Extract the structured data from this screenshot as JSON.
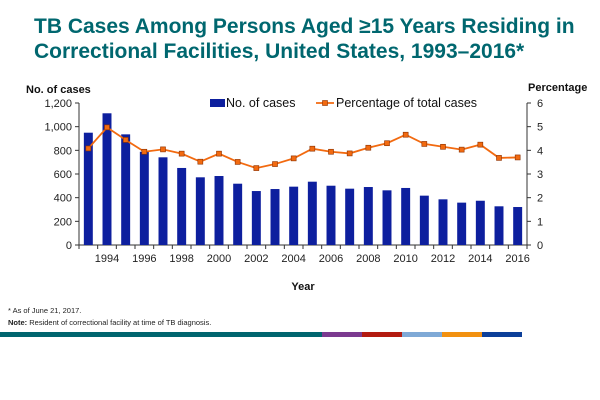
{
  "title": "TB Cases Among Persons Aged ≥15 Years Residing in Correctional Facilities, United States, 1993–2016*",
  "footnote": "*   As of June 21, 2017.",
  "note_label": "Note:",
  "note_text": " Resident of correctional facility at time of TB diagnosis.",
  "colors": {
    "title": "#00676f",
    "bar": "#0d1f9e",
    "line": "#f26a10",
    "footer": [
      "#00656f",
      "#7b3a8f",
      "#b31b10",
      "#7fa9d6",
      "#f29110",
      "#0c3f99"
    ]
  },
  "chart_data": {
    "type": "bar+line",
    "xlabel": "Year",
    "ylabel_left": "No. of cases",
    "ylabel_right": "Percentage",
    "ylim_left": [
      0,
      1200
    ],
    "ylim_right": [
      0,
      6
    ],
    "yticks_left": [
      "0",
      "200",
      "400",
      "600",
      "800",
      "1,000",
      "1,200"
    ],
    "yticks_right": [
      "0",
      "1",
      "2",
      "3",
      "4",
      "5",
      "6"
    ],
    "x": [
      1993,
      1994,
      1995,
      1996,
      1997,
      1998,
      1999,
      2000,
      2001,
      2002,
      2003,
      2004,
      2005,
      2006,
      2007,
      2008,
      2009,
      2010,
      2011,
      2012,
      2013,
      2014,
      2015,
      2016
    ],
    "xtick_labels": [
      "1994",
      "1996",
      "1998",
      "2000",
      "2002",
      "2004",
      "2006",
      "2008",
      "2010",
      "2012",
      "2014",
      "2016"
    ],
    "legend_position": "top",
    "series": [
      {
        "name": "No. of cases",
        "type": "bar",
        "axis": "left",
        "values": [
          949,
          1113,
          935,
          788,
          741,
          651,
          572,
          583,
          518,
          456,
          473,
          493,
          535,
          501,
          476,
          490,
          462,
          482,
          417,
          386,
          358,
          374,
          327,
          321
        ]
      },
      {
        "name": "Percentage of total cases",
        "type": "line",
        "axis": "right",
        "values": [
          4.08,
          4.97,
          4.44,
          3.94,
          4.04,
          3.86,
          3.52,
          3.86,
          3.51,
          3.25,
          3.42,
          3.66,
          4.07,
          3.94,
          3.87,
          4.11,
          4.3,
          4.66,
          4.27,
          4.15,
          4.03,
          4.24,
          3.68,
          3.7
        ]
      }
    ]
  }
}
